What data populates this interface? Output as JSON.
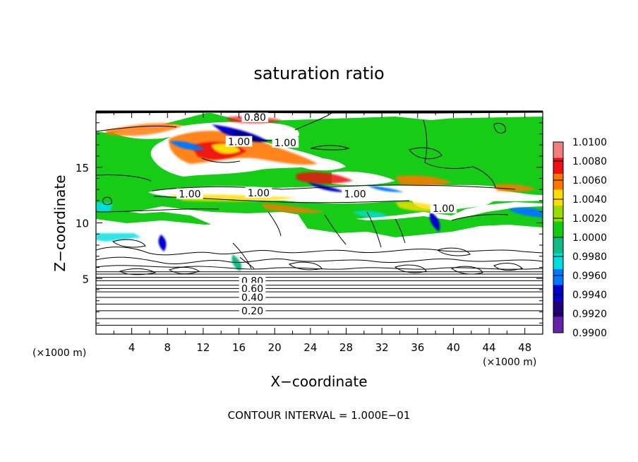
{
  "chart_data": {
    "type": "heatmap",
    "title": "saturation ratio",
    "xlabel": "X−coordinate",
    "ylabel": "Z−coordinate",
    "x_unit_left": "(×1000 m)",
    "x_unit_right": "(×1000 m)",
    "xlim": [
      0,
      50
    ],
    "ylim": [
      0,
      20
    ],
    "x_ticks": [
      4,
      8,
      12,
      16,
      20,
      24,
      28,
      32,
      36,
      40,
      44,
      48
    ],
    "y_ticks": [
      5,
      10,
      15
    ],
    "footer": "CONTOUR INTERVAL = 1.000E−01",
    "colorbar": {
      "labels": [
        "1.0100",
        "1.0080",
        "1.0060",
        "1.0040",
        "1.0020",
        "1.0000",
        "0.9980",
        "0.9960",
        "0.9940",
        "0.9920",
        "0.9900"
      ],
      "colors": [
        "#f08080",
        "#ee1111",
        "#ff7700",
        "#ffdd00",
        "#99dd00",
        "#11cc11",
        "#11bb88",
        "#00dddd",
        "#0077ff",
        "#0000cc",
        "#220077",
        "#6622aa"
      ]
    },
    "contour_labels": [
      {
        "text": "0.80",
        "x": 17.8,
        "z": 19.5
      },
      {
        "text": "1.00",
        "x": 16.0,
        "z": 17.3
      },
      {
        "text": "1.00",
        "x": 21.2,
        "z": 17.2
      },
      {
        "text": "1.00",
        "x": 10.5,
        "z": 12.6
      },
      {
        "text": "1.00",
        "x": 18.2,
        "z": 12.7
      },
      {
        "text": "1.00",
        "x": 29.0,
        "z": 12.6
      },
      {
        "text": "1.00",
        "x": 38.9,
        "z": 11.3
      },
      {
        "text": "0.80",
        "x": 17.5,
        "z": 4.8
      },
      {
        "text": "0.60",
        "x": 17.5,
        "z": 4.1
      },
      {
        "text": "0.40",
        "x": 17.5,
        "z": 3.3
      },
      {
        "text": "0.20",
        "x": 17.5,
        "z": 2.1
      }
    ],
    "lower_contour_levels_z": [
      0.8,
      1.4,
      2.1,
      2.7,
      3.3,
      3.8,
      4.1,
      4.4,
      4.8,
      5.1,
      5.4,
      5.6
    ]
  }
}
